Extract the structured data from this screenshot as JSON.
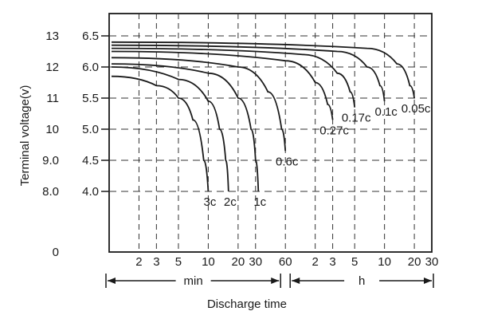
{
  "chart_data": {
    "type": "line",
    "xlabel": "Discharge time",
    "ylabel": "Terminal voltage(v)",
    "x_ticks": [
      {
        "label": "2",
        "value": "2 min"
      },
      {
        "label": "3",
        "value": "3 min"
      },
      {
        "label": "5",
        "value": "5 min"
      },
      {
        "label": "10",
        "value": "10 min"
      },
      {
        "label": "20",
        "value": "20 min"
      },
      {
        "label": "30",
        "value": "30 min"
      },
      {
        "label": "60",
        "value": "60 min"
      },
      {
        "label": "2",
        "value": "2 h"
      },
      {
        "label": "3",
        "value": "3 h"
      },
      {
        "label": "5",
        "value": "5 h"
      },
      {
        "label": "10",
        "value": "10 h"
      },
      {
        "label": "20",
        "value": "20 h"
      },
      {
        "label": "30",
        "value": "30 h"
      }
    ],
    "x_segments": [
      {
        "label": "min",
        "from_minutes": 1,
        "to_minutes": 60
      },
      {
        "label": "h",
        "from_minutes": 60,
        "to_minutes": 1800
      }
    ],
    "x_scale": "log",
    "xlim_minutes": [
      1,
      1800
    ],
    "y_ticks_outer": [
      "13",
      "12",
      "11",
      "10",
      "9.0",
      "8.0",
      "0"
    ],
    "y_ticks_inner": [
      "6.5",
      "6.0",
      "5.5",
      "5.0",
      "4.5",
      "4.0"
    ],
    "ylim": [
      0,
      13.5
    ],
    "grid": "dashed",
    "series": [
      {
        "name": "3c",
        "points": [
          [
            1,
            11.7
          ],
          [
            3,
            11.4
          ],
          [
            5,
            11.0
          ],
          [
            7,
            10.3
          ],
          [
            9,
            9.0
          ],
          [
            10,
            8.0
          ]
        ]
      },
      {
        "name": "2c",
        "points": [
          [
            1,
            12.0
          ],
          [
            5,
            11.6
          ],
          [
            10,
            10.9
          ],
          [
            13,
            10.0
          ],
          [
            15,
            9.0
          ],
          [
            16,
            8.0
          ]
        ]
      },
      {
        "name": "1c",
        "points": [
          [
            1,
            12.1
          ],
          [
            10,
            11.8
          ],
          [
            20,
            11.0
          ],
          [
            27,
            10.0
          ],
          [
            30,
            9.0
          ],
          [
            32,
            8.0
          ]
        ]
      },
      {
        "name": "0.6c",
        "points": [
          [
            1,
            12.3
          ],
          [
            20,
            12.0
          ],
          [
            40,
            11.2
          ],
          [
            55,
            10.0
          ],
          [
            60,
            9.3
          ]
        ]
      },
      {
        "name": "0.27c",
        "points": [
          [
            1,
            12.5
          ],
          [
            60,
            12.2
          ],
          [
            120,
            11.5
          ],
          [
            160,
            10.8
          ],
          [
            180,
            10.3
          ]
        ]
      },
      {
        "name": "0.17c",
        "points": [
          [
            1,
            12.6
          ],
          [
            90,
            12.4
          ],
          [
            200,
            11.8
          ],
          [
            270,
            11.2
          ],
          [
            300,
            10.7
          ]
        ]
      },
      {
        "name": "0.1c",
        "points": [
          [
            1,
            12.7
          ],
          [
            200,
            12.5
          ],
          [
            400,
            12.0
          ],
          [
            540,
            11.4
          ],
          [
            600,
            10.9
          ]
        ]
      },
      {
        "name": "0.05c",
        "points": [
          [
            1,
            12.8
          ],
          [
            400,
            12.6
          ],
          [
            800,
            12.1
          ],
          [
            1080,
            11.4
          ],
          [
            1200,
            11.0
          ]
        ]
      }
    ]
  }
}
